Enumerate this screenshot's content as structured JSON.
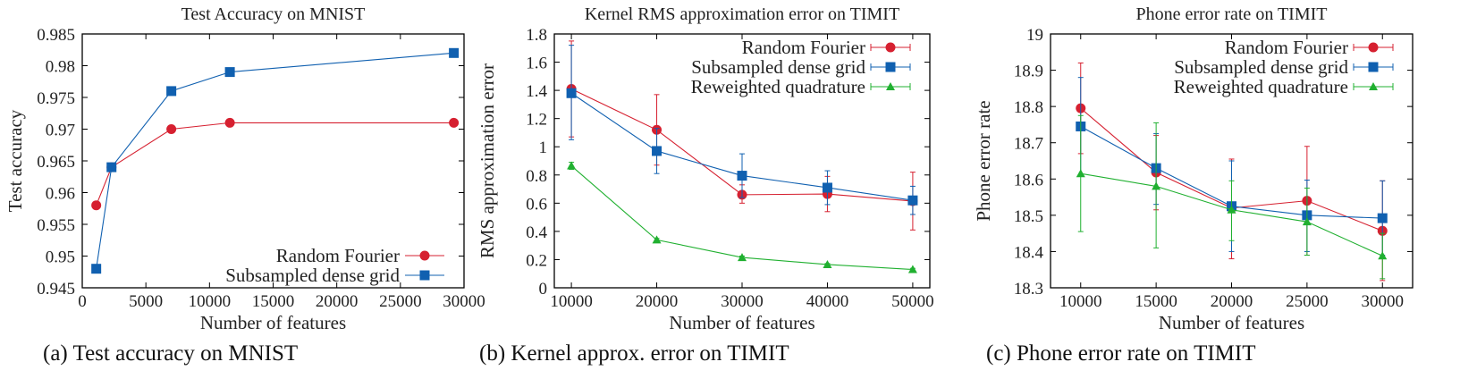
{
  "captions": [
    "(a) Test accuracy on MNIST",
    "(b) Kernel approx. error on TIMIT",
    "(c) Phone error rate on TIMIT"
  ],
  "colors": {
    "Random Fourier": "#d62030",
    "Subsampled dense grid": "#1060b0",
    "Reweighted quadrature": "#20b030"
  },
  "chart_data": [
    {
      "type": "line",
      "title": "Test Accuracy on MNIST",
      "xlabel": "Number of features",
      "ylabel": "Test accuracy",
      "xlim": [
        0,
        30000
      ],
      "ylim": [
        0.945,
        0.985
      ],
      "xticks": [
        0,
        5000,
        10000,
        15000,
        20000,
        25000,
        30000
      ],
      "yticks": [
        0.945,
        0.95,
        0.955,
        0.96,
        0.965,
        0.97,
        0.975,
        0.98,
        0.985
      ],
      "legend": "bottom-right",
      "error_bars": false,
      "series": [
        {
          "name": "Random Fourier",
          "marker": "circle",
          "x": [
            1100,
            2300,
            7000,
            11600,
            29200
          ],
          "y": [
            0.958,
            0.964,
            0.97,
            0.971,
            0.971
          ]
        },
        {
          "name": "Subsampled dense grid",
          "marker": "square",
          "x": [
            1100,
            2300,
            7000,
            11600,
            29200
          ],
          "y": [
            0.948,
            0.964,
            0.976,
            0.979,
            0.982
          ]
        }
      ]
    },
    {
      "type": "line",
      "title": "Kernel RMS approximation error on TIMIT",
      "xlabel": "Number of features",
      "ylabel": "RMS approximation error",
      "xlim": [
        8000,
        52000
      ],
      "ylim": [
        0,
        1.8
      ],
      "xticks": [
        10000,
        20000,
        30000,
        40000,
        50000
      ],
      "yticks": [
        0,
        0.2,
        0.4,
        0.6,
        0.8,
        1,
        1.2,
        1.4,
        1.6,
        1.8
      ],
      "legend": "top-right",
      "error_bars": true,
      "series": [
        {
          "name": "Random Fourier",
          "marker": "circle",
          "x": [
            10000,
            20000,
            30000,
            40000,
            50000
          ],
          "y": [
            1.41,
            1.12,
            0.66,
            0.665,
            0.615
          ],
          "err_low": [
            1.07,
            0.87,
            0.6,
            0.54,
            0.41
          ],
          "err_high": [
            1.75,
            1.37,
            0.73,
            0.79,
            0.82
          ]
        },
        {
          "name": "Subsampled dense grid",
          "marker": "square",
          "x": [
            10000,
            20000,
            30000,
            40000,
            50000
          ],
          "y": [
            1.38,
            0.97,
            0.795,
            0.71,
            0.62
          ],
          "err_low": [
            1.05,
            0.81,
            0.64,
            0.59,
            0.52
          ],
          "err_high": [
            1.72,
            1.13,
            0.95,
            0.83,
            0.72
          ]
        },
        {
          "name": "Reweighted quadrature",
          "marker": "triangle",
          "x": [
            10000,
            20000,
            30000,
            40000,
            50000
          ],
          "y": [
            0.865,
            0.34,
            0.215,
            0.165,
            0.13
          ],
          "err_low": [
            0.84,
            0.33,
            0.205,
            0.158,
            0.122
          ],
          "err_high": [
            0.89,
            0.35,
            0.225,
            0.172,
            0.138
          ]
        }
      ]
    },
    {
      "type": "line",
      "title": "Phone error rate on TIMIT",
      "xlabel": "Number of features",
      "ylabel": "Phone error rate",
      "xlim": [
        8000,
        32000
      ],
      "ylim": [
        18.3,
        19
      ],
      "xticks": [
        10000,
        15000,
        20000,
        25000,
        30000
      ],
      "yticks": [
        18.3,
        18.4,
        18.5,
        18.6,
        18.7,
        18.8,
        18.9,
        19
      ],
      "legend": "top-right",
      "error_bars": true,
      "series": [
        {
          "name": "Random Fourier",
          "marker": "circle",
          "x": [
            10000,
            15000,
            20000,
            25000,
            30000
          ],
          "y": [
            18.795,
            18.618,
            18.52,
            18.54,
            18.457
          ],
          "err_low": [
            18.67,
            18.515,
            18.38,
            18.39,
            18.32
          ],
          "err_high": [
            18.92,
            18.72,
            18.655,
            18.69,
            18.595
          ]
        },
        {
          "name": "Subsampled dense grid",
          "marker": "square",
          "x": [
            10000,
            15000,
            20000,
            25000,
            30000
          ],
          "y": [
            18.745,
            18.63,
            18.525,
            18.5,
            18.492
          ],
          "err_low": [
            18.61,
            18.53,
            18.4,
            18.4,
            18.39
          ],
          "err_high": [
            18.88,
            18.725,
            18.65,
            18.597,
            18.595
          ]
        },
        {
          "name": "Reweighted quadrature",
          "marker": "triangle",
          "x": [
            10000,
            15000,
            20000,
            25000,
            30000
          ],
          "y": [
            18.615,
            18.58,
            18.515,
            18.482,
            18.388
          ],
          "err_low": [
            18.455,
            18.41,
            18.43,
            18.39,
            18.325
          ],
          "err_high": [
            18.775,
            18.755,
            18.595,
            18.575,
            18.45
          ]
        }
      ]
    }
  ]
}
